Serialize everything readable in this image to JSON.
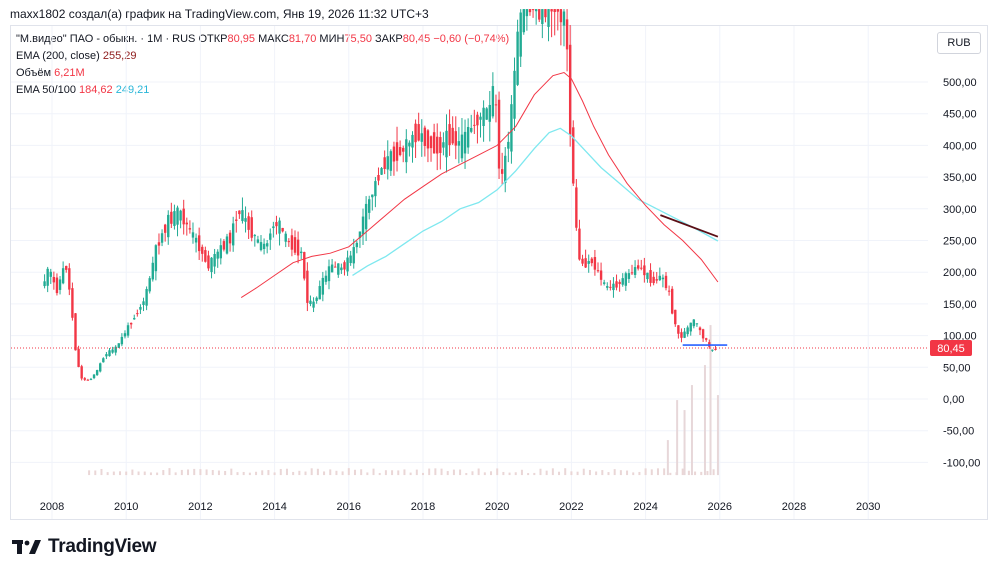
{
  "header": {
    "attribution": "maxx1802 создал(а) график на TradingView.com, Янв 19, 2026 11:32 UTC+3"
  },
  "legend": {
    "symbol": "\"М.видео\" ПАО - обыкн. · 1М · RUS",
    "open_label": "ОТКР",
    "open_value": "80,95",
    "high_label": "МАКС",
    "high_value": "81,70",
    "low_label": "МИН",
    "low_value": "75,50",
    "close_label": "ЗАКР",
    "close_value": "80,45",
    "change": "−0,60 (−0,74%)",
    "ema200_label": "EMA (200, close)",
    "ema200_value": "255,29",
    "volume_label": "Объём",
    "volume_value": "6,21M",
    "ema50100_label": "EMA 50/100",
    "ema50_value": "184,62",
    "ema100_value": "249,21"
  },
  "currency": "RUB",
  "brand": {
    "name": "TradingView",
    "icon": "tradingview-logo-icon"
  },
  "colors": {
    "up": "#22ab94",
    "down": "#f23645",
    "ema50": "#f23645",
    "ema100": "#7ee8ef",
    "trendline": "#5b0f16",
    "level": "#2962ff"
  },
  "chart_data": {
    "type": "candlestick",
    "title": "\"М.видео\" ПАО - обыкн. · 1М · RUS",
    "ylabel": "RUB",
    "ylim": [
      -125,
      615
    ],
    "xlim": [
      2007.5,
      2031.6
    ],
    "x_ticks": [
      "2008",
      "2010",
      "2012",
      "2014",
      "2016",
      "2018",
      "2020",
      "2022",
      "2024",
      "2026",
      "2028",
      "2030"
    ],
    "y_ticks": [
      "500,00",
      "450,00",
      "400,00",
      "350,00",
      "300,00",
      "250,00",
      "200,00",
      "150,00",
      "100,00",
      "50,00",
      "0,00",
      "-50,00",
      "-100,00"
    ],
    "last_price": "80,45",
    "price_series": [
      [
        2007.8,
        175
      ],
      [
        2008.0,
        205
      ],
      [
        2008.2,
        170
      ],
      [
        2008.45,
        215
      ],
      [
        2008.6,
        150
      ],
      [
        2008.75,
        60
      ],
      [
        2008.9,
        30
      ],
      [
        2009.1,
        30
      ],
      [
        2009.3,
        45
      ],
      [
        2009.5,
        70
      ],
      [
        2009.8,
        80
      ],
      [
        2010.0,
        100
      ],
      [
        2010.3,
        130
      ],
      [
        2010.6,
        160
      ],
      [
        2010.9,
        240
      ],
      [
        2011.2,
        280
      ],
      [
        2011.5,
        295
      ],
      [
        2011.8,
        265
      ],
      [
        2012.0,
        245
      ],
      [
        2012.3,
        210
      ],
      [
        2012.6,
        235
      ],
      [
        2012.9,
        255
      ],
      [
        2013.1,
        300
      ],
      [
        2013.4,
        270
      ],
      [
        2013.7,
        240
      ],
      [
        2013.9,
        245
      ],
      [
        2014.0,
        275
      ],
      [
        2014.2,
        275
      ],
      [
        2014.4,
        250
      ],
      [
        2014.6,
        240
      ],
      [
        2014.8,
        230
      ],
      [
        2014.95,
        160
      ],
      [
        2015.1,
        145
      ],
      [
        2015.3,
        175
      ],
      [
        2015.6,
        210
      ],
      [
        2015.9,
        205
      ],
      [
        2016.2,
        230
      ],
      [
        2016.5,
        290
      ],
      [
        2016.8,
        340
      ],
      [
        2017.0,
        370
      ],
      [
        2017.3,
        385
      ],
      [
        2017.6,
        395
      ],
      [
        2017.9,
        420
      ],
      [
        2018.2,
        405
      ],
      [
        2018.5,
        395
      ],
      [
        2018.8,
        415
      ],
      [
        2019.1,
        400
      ],
      [
        2019.4,
        430
      ],
      [
        2019.7,
        450
      ],
      [
        2019.9,
        455
      ],
      [
        2020.0,
        505
      ],
      [
        2020.1,
        395
      ],
      [
        2020.2,
        340
      ],
      [
        2020.35,
        400
      ],
      [
        2020.5,
        465
      ],
      [
        2020.6,
        560
      ],
      [
        2020.8,
        615
      ],
      [
        2021.0,
        615
      ],
      [
        2021.5,
        615
      ],
      [
        2021.8,
        615
      ],
      [
        2021.95,
        580
      ],
      [
        2022.05,
        420
      ],
      [
        2022.15,
        330
      ],
      [
        2022.25,
        230
      ],
      [
        2022.4,
        210
      ],
      [
        2022.6,
        220
      ],
      [
        2022.8,
        200
      ],
      [
        2023.0,
        175
      ],
      [
        2023.3,
        180
      ],
      [
        2023.6,
        195
      ],
      [
        2023.9,
        210
      ],
      [
        2024.1,
        195
      ],
      [
        2024.3,
        185
      ],
      [
        2024.5,
        195
      ],
      [
        2024.7,
        170
      ],
      [
        2024.85,
        125
      ],
      [
        2025.0,
        95
      ],
      [
        2025.2,
        110
      ],
      [
        2025.4,
        125
      ],
      [
        2025.6,
        100
      ],
      [
        2025.75,
        90
      ],
      [
        2025.85,
        72
      ],
      [
        2025.95,
        80.45
      ]
    ],
    "ema50": [
      [
        2013.1,
        160
      ],
      [
        2013.5,
        175
      ],
      [
        2014.0,
        195
      ],
      [
        2014.5,
        215
      ],
      [
        2015.0,
        225
      ],
      [
        2015.5,
        230
      ],
      [
        2016.0,
        240
      ],
      [
        2016.5,
        265
      ],
      [
        2017.0,
        290
      ],
      [
        2017.5,
        315
      ],
      [
        2018.0,
        335
      ],
      [
        2018.5,
        355
      ],
      [
        2019.0,
        370
      ],
      [
        2019.5,
        385
      ],
      [
        2020.0,
        400
      ],
      [
        2020.5,
        430
      ],
      [
        2021.0,
        480
      ],
      [
        2021.5,
        510
      ],
      [
        2021.8,
        515
      ],
      [
        2022.0,
        505
      ],
      [
        2022.3,
        470
      ],
      [
        2022.6,
        430
      ],
      [
        2023.0,
        385
      ],
      [
        2023.5,
        340
      ],
      [
        2024.0,
        305
      ],
      [
        2024.5,
        275
      ],
      [
        2025.0,
        250
      ],
      [
        2025.5,
        220
      ],
      [
        2025.95,
        184.62
      ]
    ],
    "ema100": [
      [
        2016.1,
        195
      ],
      [
        2016.5,
        210
      ],
      [
        2017.0,
        225
      ],
      [
        2017.5,
        245
      ],
      [
        2018.0,
        265
      ],
      [
        2018.5,
        280
      ],
      [
        2019.0,
        300
      ],
      [
        2019.5,
        310
      ],
      [
        2020.0,
        330
      ],
      [
        2020.5,
        360
      ],
      [
        2021.0,
        395
      ],
      [
        2021.4,
        420
      ],
      [
        2021.7,
        427
      ],
      [
        2022.0,
        415
      ],
      [
        2022.4,
        390
      ],
      [
        2022.8,
        365
      ],
      [
        2023.3,
        340
      ],
      [
        2023.8,
        315
      ],
      [
        2024.3,
        300
      ],
      [
        2024.8,
        285
      ],
      [
        2025.3,
        270
      ],
      [
        2025.95,
        249.21
      ]
    ],
    "ema200_value": 255.29,
    "trendline": [
      [
        2024.4,
        290
      ],
      [
        2025.95,
        256
      ]
    ],
    "horizontal_level": {
      "from": 2025.0,
      "to": 2026.2,
      "value": 85
    },
    "volume_spikes": [
      [
        2024.6,
        35
      ],
      [
        2024.85,
        75
      ],
      [
        2025.05,
        65
      ],
      [
        2025.25,
        90
      ],
      [
        2025.6,
        110
      ],
      [
        2025.75,
        150
      ],
      [
        2025.95,
        80
      ]
    ]
  }
}
